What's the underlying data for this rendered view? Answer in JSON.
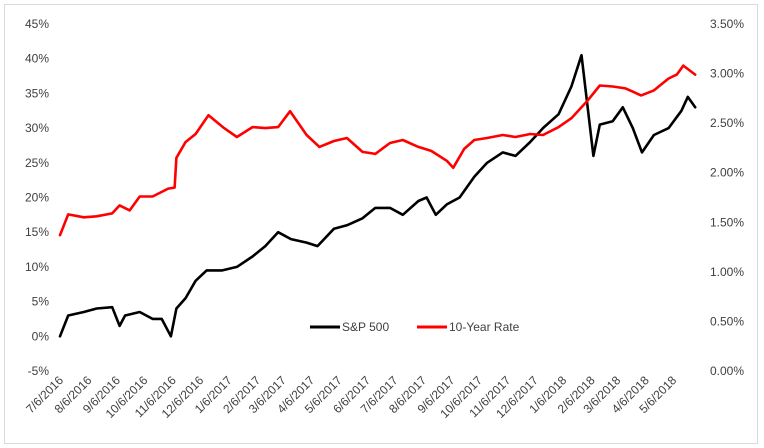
{
  "chart_data": {
    "type": "line",
    "title": "",
    "xlabel": "",
    "ylabel": "",
    "y2label": "",
    "grid": false,
    "legend": {
      "position": "inside-bottom-center",
      "items": [
        "S&P 500",
        "10-Year Rate"
      ]
    },
    "x_ticks": [
      "7/6/2016",
      "8/6/2016",
      "9/6/2016",
      "10/6/2016",
      "11/6/2016",
      "12/6/2016",
      "1/6/2017",
      "2/6/2017",
      "3/6/2017",
      "4/6/2017",
      "5/6/2017",
      "6/6/2017",
      "7/6/2017",
      "8/6/2017",
      "9/6/2017",
      "10/6/2017",
      "11/6/2017",
      "12/6/2017",
      "1/6/2018",
      "2/6/2018",
      "3/6/2018",
      "4/6/2018",
      "5/6/2018"
    ],
    "y_left": {
      "ticks": [
        "-5%",
        "0%",
        "5%",
        "10%",
        "15%",
        "20%",
        "25%",
        "30%",
        "35%",
        "40%",
        "45%"
      ],
      "range": [
        -5,
        45
      ]
    },
    "y_right": {
      "ticks": [
        "0.00%",
        "0.50%",
        "1.00%",
        "1.50%",
        "2.00%",
        "2.50%",
        "3.00%",
        "3.50%"
      ],
      "range": [
        0,
        3.5
      ]
    },
    "series": [
      {
        "name": "S&P 500",
        "axis": "left",
        "color": "#000000",
        "x": [
          "2016-07-06",
          "2016-07-15",
          "2016-08-01",
          "2016-08-15",
          "2016-09-01",
          "2016-09-09",
          "2016-09-15",
          "2016-10-01",
          "2016-10-15",
          "2016-10-25",
          "2016-11-04",
          "2016-11-10",
          "2016-11-20",
          "2016-12-01",
          "2016-12-13",
          "2016-12-30",
          "2017-01-15",
          "2017-02-01",
          "2017-02-15",
          "2017-03-01",
          "2017-03-15",
          "2017-04-01",
          "2017-04-13",
          "2017-05-01",
          "2017-05-15",
          "2017-06-01",
          "2017-06-15",
          "2017-07-01",
          "2017-07-15",
          "2017-08-01",
          "2017-08-10",
          "2017-08-20",
          "2017-09-01",
          "2017-09-15",
          "2017-10-01",
          "2017-10-15",
          "2017-11-01",
          "2017-11-15",
          "2017-12-01",
          "2017-12-15",
          "2018-01-01",
          "2018-01-15",
          "2018-01-26",
          "2018-02-08",
          "2018-02-15",
          "2018-03-01",
          "2018-03-12",
          "2018-03-23",
          "2018-04-02",
          "2018-04-15",
          "2018-05-01",
          "2018-05-15",
          "2018-05-22",
          "2018-05-30"
        ],
        "values": [
          0,
          3,
          3.5,
          4,
          4.2,
          1.5,
          3,
          3.5,
          2.5,
          2.5,
          0,
          4,
          5.5,
          8,
          9.5,
          9.5,
          10,
          11.5,
          13,
          15,
          14,
          13.5,
          13,
          15.5,
          16,
          17,
          18.5,
          18.5,
          17.5,
          19.5,
          20,
          17.5,
          19,
          20,
          23,
          25,
          26.5,
          26,
          28,
          30,
          32,
          36,
          40.5,
          26,
          30.5,
          31,
          33,
          30,
          26.5,
          29,
          30,
          32.5,
          34.5,
          33
        ]
      },
      {
        "name": "10-Year Rate",
        "axis": "right",
        "color": "#ff0000",
        "x": [
          "2016-07-06",
          "2016-07-15",
          "2016-08-01",
          "2016-08-15",
          "2016-09-01",
          "2016-09-09",
          "2016-09-20",
          "2016-10-01",
          "2016-10-15",
          "2016-11-01",
          "2016-11-08",
          "2016-11-10",
          "2016-11-20",
          "2016-12-01",
          "2016-12-15",
          "2017-01-01",
          "2017-01-15",
          "2017-02-01",
          "2017-02-15",
          "2017-03-01",
          "2017-03-14",
          "2017-04-01",
          "2017-04-15",
          "2017-05-01",
          "2017-05-15",
          "2017-06-01",
          "2017-06-15",
          "2017-07-01",
          "2017-07-15",
          "2017-08-01",
          "2017-08-15",
          "2017-09-01",
          "2017-09-08",
          "2017-09-20",
          "2017-10-01",
          "2017-10-15",
          "2017-11-01",
          "2017-11-15",
          "2017-12-01",
          "2017-12-15",
          "2018-01-01",
          "2018-01-15",
          "2018-02-01",
          "2018-02-15",
          "2018-03-01",
          "2018-03-15",
          "2018-04-01",
          "2018-04-15",
          "2018-05-01",
          "2018-05-10",
          "2018-05-17",
          "2018-05-30"
        ],
        "values": [
          1.37,
          1.58,
          1.55,
          1.56,
          1.59,
          1.67,
          1.62,
          1.76,
          1.76,
          1.84,
          1.85,
          2.15,
          2.31,
          2.39,
          2.58,
          2.45,
          2.36,
          2.46,
          2.45,
          2.46,
          2.62,
          2.38,
          2.26,
          2.32,
          2.35,
          2.21,
          2.19,
          2.3,
          2.33,
          2.26,
          2.22,
          2.12,
          2.05,
          2.24,
          2.33,
          2.35,
          2.38,
          2.36,
          2.39,
          2.38,
          2.46,
          2.55,
          2.72,
          2.88,
          2.87,
          2.85,
          2.78,
          2.83,
          2.95,
          2.99,
          3.08,
          2.99
        ]
      }
    ]
  }
}
